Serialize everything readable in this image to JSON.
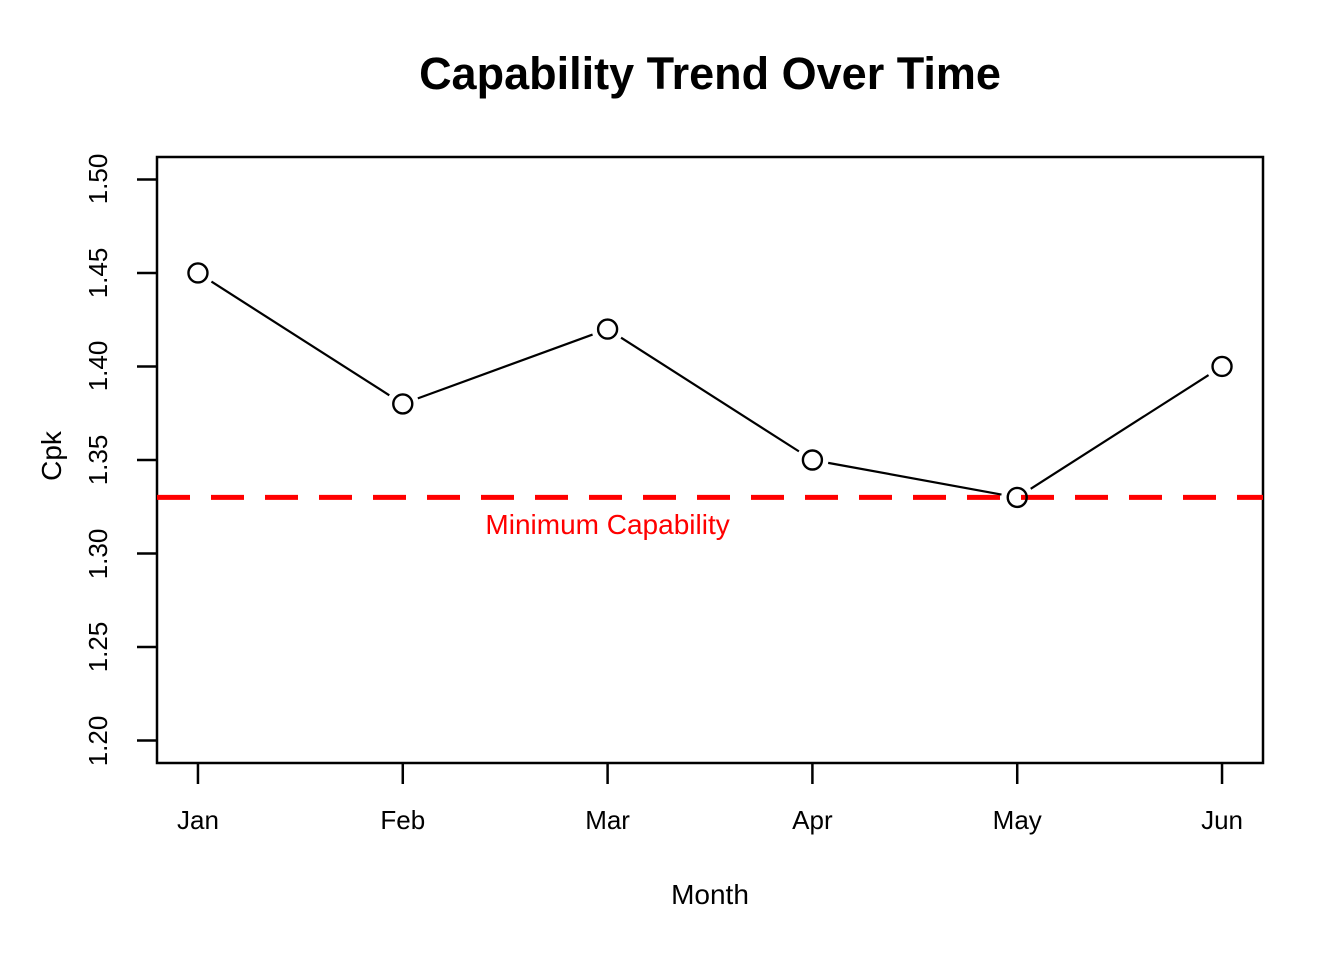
{
  "chart_data": {
    "type": "line",
    "title": "Capability Trend Over Time",
    "xlabel": "Month",
    "ylabel": "Cpk",
    "categories": [
      "Jan",
      "Feb",
      "Mar",
      "Apr",
      "May",
      "Jun"
    ],
    "series": [
      {
        "name": "Cpk",
        "values": [
          1.45,
          1.38,
          1.42,
          1.35,
          1.33,
          1.4
        ],
        "color": "#000000",
        "marker": "open-circle",
        "line_style": "solid"
      }
    ],
    "reference_line": {
      "value": 1.33,
      "label": "Minimum Capability",
      "color": "#FF0000",
      "style": "dashed",
      "label_anchor_x": 3
    },
    "y_ticks": [
      1.2,
      1.25,
      1.3,
      1.35,
      1.4,
      1.45,
      1.5
    ],
    "y_tick_labels": [
      "1.20",
      "1.25",
      "1.30",
      "1.35",
      "1.40",
      "1.45",
      "1.50"
    ],
    "ylim": [
      1.188,
      1.512
    ],
    "xlim": [
      0.8,
      6.2
    ],
    "grid": false,
    "legend": "none",
    "background": "#FFFFFF",
    "frame": "box"
  }
}
